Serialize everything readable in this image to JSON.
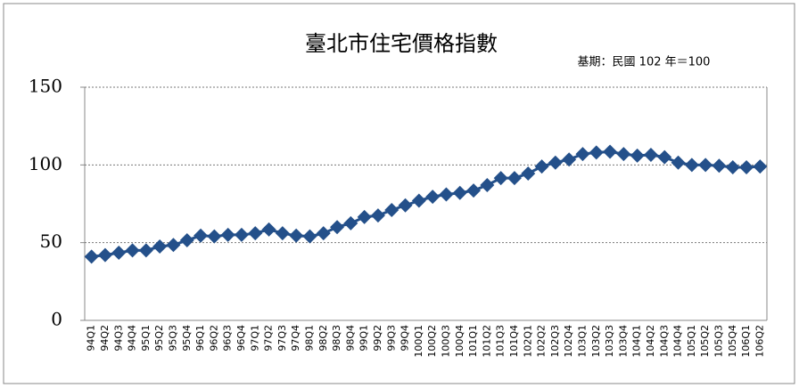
{
  "chart_data": {
    "type": "line",
    "title": "臺北市住宅價格指數",
    "subtitle": "基期：民國 102 年＝100",
    "categories": [
      "94Q1",
      "94Q2",
      "94Q3",
      "94Q4",
      "95Q1",
      "95Q2",
      "95Q3",
      "95Q4",
      "96Q1",
      "96Q2",
      "96Q3",
      "96Q4",
      "97Q1",
      "97Q2",
      "97Q3",
      "97Q4",
      "98Q1",
      "98Q2",
      "98Q3",
      "98Q4",
      "99Q1",
      "99Q2",
      "99Q3",
      "99Q4",
      "100Q1",
      "100Q2",
      "100Q3",
      "100Q4",
      "101Q1",
      "101Q2",
      "101Q3",
      "101Q4",
      "102Q1",
      "102Q2",
      "102Q3",
      "102Q4",
      "103Q1",
      "103Q2",
      "103Q3",
      "103Q4",
      "104Q1",
      "104Q2",
      "104Q3",
      "104Q4",
      "105Q1",
      "105Q2",
      "105Q3",
      "105Q4",
      "106Q1",
      "106Q2"
    ],
    "values": [
      41,
      42,
      43.5,
      45,
      45,
      47.5,
      48.5,
      51.5,
      54.5,
      54,
      55,
      55,
      56,
      58.5,
      56,
      54.5,
      54,
      56,
      60,
      62.5,
      66.5,
      67.5,
      71,
      74,
      77,
      79.5,
      81,
      82,
      83.5,
      87,
      91.5,
      91.5,
      94.5,
      99,
      101.5,
      103.5,
      107,
      108,
      108.5,
      107,
      106,
      106.5,
      105,
      101.5,
      100,
      100,
      99.5,
      98.5,
      98.5,
      99
    ],
    "color": "#24508a",
    "ylim": [
      0,
      150
    ],
    "yticks": [
      0,
      50,
      100,
      150
    ],
    "grid": true
  }
}
